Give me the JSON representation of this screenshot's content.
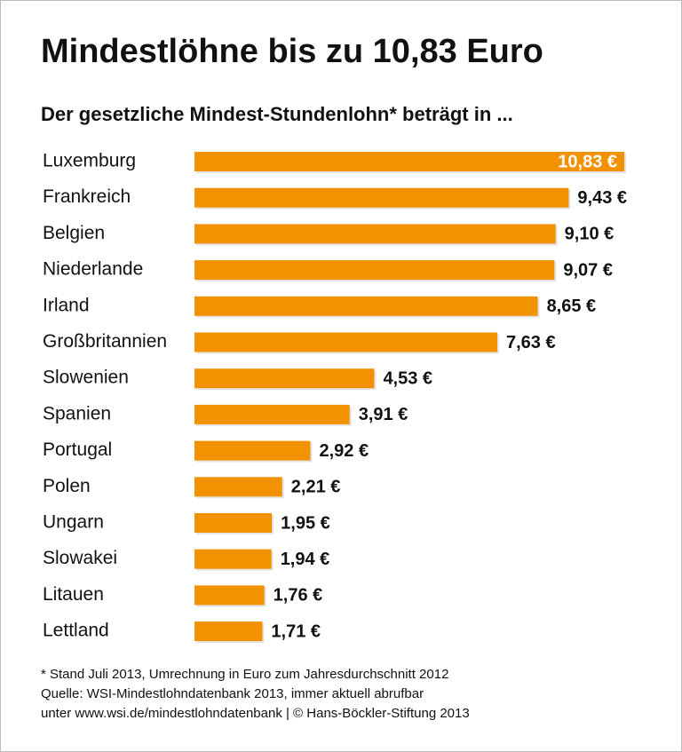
{
  "chart_data": {
    "type": "bar",
    "orientation": "horizontal",
    "title": "Mindestlöhne bis zu 10,83 Euro",
    "subtitle": "Der gesetzliche Mindest-Stundenlohn* beträgt in ...",
    "categories": [
      "Luxemburg",
      "Frankreich",
      "Belgien",
      "Niederlande",
      "Irland",
      "Großbritannien",
      "Slowenien",
      "Spanien",
      "Portugal",
      "Polen",
      "Ungarn",
      "Slowakei",
      "Litauen",
      "Lettland"
    ],
    "values": [
      10.83,
      9.43,
      9.1,
      9.07,
      8.65,
      7.63,
      4.53,
      3.91,
      2.92,
      2.21,
      1.95,
      1.94,
      1.76,
      1.71
    ],
    "value_labels": [
      "10,83 €",
      "9,43 €",
      "9,10 €",
      "9,07 €",
      "8,65 €",
      "7,63 €",
      "4,53 €",
      "3,91 €",
      "2,92 €",
      "2,21 €",
      "1,95 €",
      "1,94 €",
      "1,76 €",
      "1,71 €"
    ],
    "color": "#f39200",
    "footnotes": [
      "* Stand Juli 2013, Umrechnung in Euro zum Jahresdurchschnitt 2012",
      "Quelle: WSI-Mindestlohndatenbank 2013, immer aktuell abrufbar",
      "unter www.wsi.de/mindestlohndatenbank | © Hans-Böckler-Stiftung 2013"
    ]
  }
}
